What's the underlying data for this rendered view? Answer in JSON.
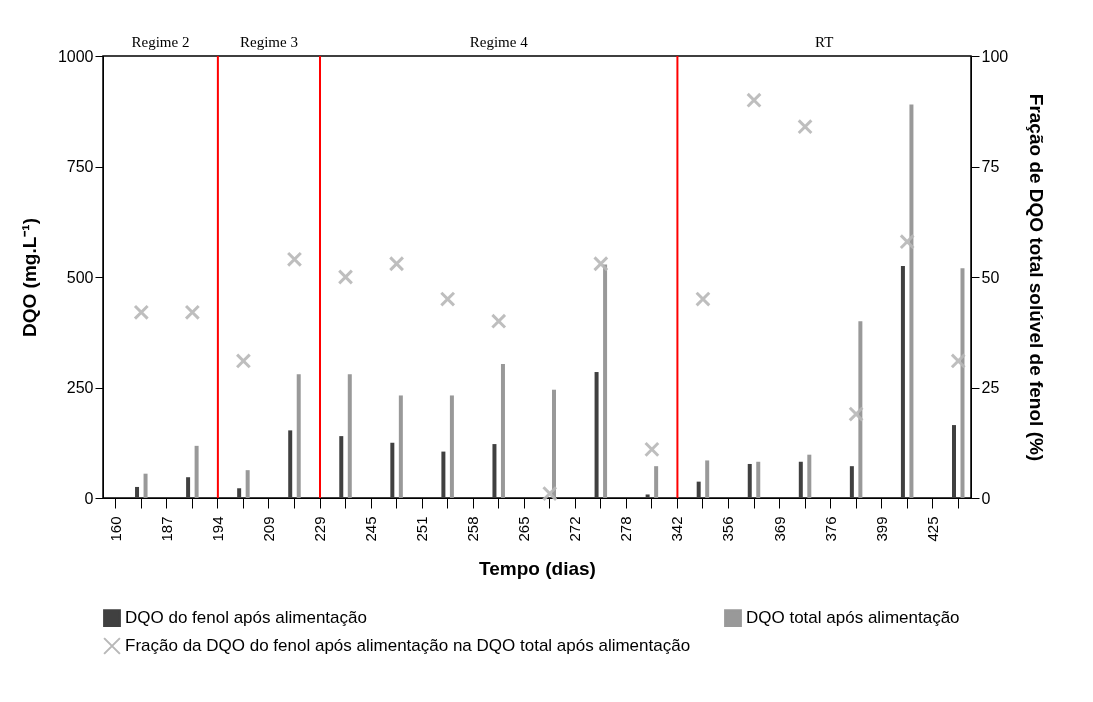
{
  "chart_data": {
    "type": "bar",
    "categories": [
      "160",
      null,
      "187",
      null,
      "194",
      null,
      "209",
      null,
      "229",
      null,
      "245",
      null,
      "251",
      null,
      "258",
      null,
      "265",
      null,
      "272",
      null,
      "278",
      null,
      "342",
      null,
      "356",
      null,
      "369",
      null,
      "376",
      null,
      "399",
      null,
      "425",
      null
    ],
    "series": [
      {
        "name": "DQO do fenol após alimentação",
        "color": "#404040",
        "values": [
          null,
          25,
          null,
          47,
          null,
          22,
          null,
          153,
          null,
          140,
          null,
          125,
          null,
          105,
          null,
          122,
          null,
          2,
          null,
          285,
          null,
          8,
          null,
          37,
          null,
          77,
          null,
          82,
          null,
          72,
          null,
          525,
          null,
          165
        ]
      },
      {
        "name": "DQO total após alimentação",
        "color": "#999999",
        "values": [
          null,
          55,
          null,
          118,
          null,
          63,
          null,
          280,
          null,
          280,
          null,
          232,
          null,
          232,
          null,
          303,
          null,
          245,
          null,
          528,
          null,
          72,
          null,
          85,
          null,
          82,
          null,
          98,
          null,
          400,
          null,
          890,
          null,
          520
        ]
      },
      {
        "name": "Fração da DQO do fenol após alimentação na DQO total após alimentação",
        "type": "scatter",
        "axis": "y2",
        "marker": "cross",
        "color": "#b8b8b8",
        "values": [
          null,
          42,
          null,
          42,
          null,
          31,
          null,
          54,
          null,
          50,
          null,
          53,
          null,
          45,
          null,
          40,
          null,
          1,
          null,
          53,
          null,
          11,
          null,
          45,
          null,
          90,
          null,
          84,
          null,
          19,
          null,
          58,
          null,
          31
        ]
      }
    ],
    "xlabel": "Tempo (dias)",
    "ylabel": "DQO (mg.L⁻¹)",
    "y2label": "Fração de DQO total solúvel de fenol (%)",
    "ylim": [
      0,
      1000
    ],
    "yticks": [
      0,
      250,
      500,
      750,
      1000
    ],
    "y2lim": [
      0,
      100
    ],
    "y2ticks": [
      0,
      25,
      50,
      75,
      100
    ],
    "ref_lines": [
      {
        "axis": "x",
        "value": "194",
        "color": "#ff0000"
      },
      {
        "axis": "x",
        "value": "229",
        "color": "#ff0000"
      },
      {
        "axis": "x",
        "value": "342",
        "color": "#ff0000"
      }
    ],
    "annotations": [
      "Regime 2",
      "Regime 3",
      "Regime 4",
      "RT"
    ],
    "grid": false,
    "legend": "bottom"
  }
}
